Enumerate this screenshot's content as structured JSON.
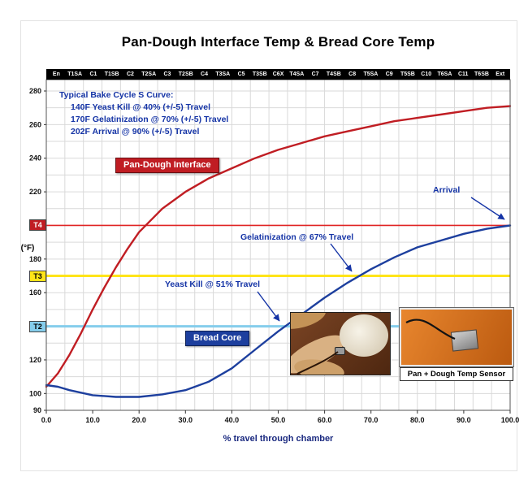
{
  "title": "Pan-Dough Interface Temp & Bread Core Temp",
  "notes": {
    "heading": "Typical Bake Cycle S Curve:",
    "line1": "140F Yeast Kill @ 40% (+/-5) Travel",
    "line2": "170F Gelatinization @ 70% (+/-5) Travel",
    "line3": "202F Arrival @ 90% (+/-5) Travel"
  },
  "legend": {
    "pan_dough_label": "Pan-Dough Interface",
    "bread_core_label": "Bread Core"
  },
  "callouts": {
    "arrival": "Arrival",
    "gelatinization": "Gelatinization @ 67% Travel",
    "yeast_kill": "Yeast Kill @ 51% Travel"
  },
  "photo_caption": "Pan + Dough Temp Sensor",
  "axis": {
    "y_unit": "(°F)",
    "x_title": "% travel through chamber"
  },
  "chart_data": {
    "type": "line",
    "title": "Pan-Dough Interface Temp & Bread Core Temp",
    "xlabel": "% travel through chamber",
    "ylabel": "(°F)",
    "xlim": [
      0,
      100
    ],
    "ylim": [
      90,
      280
    ],
    "x_tick_labels": [
      "0.0",
      "10.0",
      "20.0",
      "30.0",
      "40.0",
      "50.0",
      "60.0",
      "70.0",
      "80.0",
      "90.0",
      "100.0"
    ],
    "y_ticks": [
      90,
      100,
      120,
      140,
      160,
      180,
      200,
      220,
      240,
      260,
      280
    ],
    "grid": {
      "x_divisions": 25,
      "y_step": 10
    },
    "zones": [
      "En",
      "T1SA",
      "C1",
      "T1SB",
      "C2",
      "T2SA",
      "C3",
      "T2SB",
      "C4",
      "T3SA",
      "C5",
      "T3SB",
      "C6X",
      "T4SA",
      "C7",
      "T4SB",
      "C8",
      "T5SA",
      "C9",
      "T5SB",
      "C10",
      "T6SA",
      "C11",
      "T6SB",
      "Ext"
    ],
    "series": [
      {
        "name": "Pan-Dough Interface",
        "color": "#c01d23",
        "x": [
          0,
          2.5,
          5,
          7.5,
          10,
          12.5,
          15,
          17.5,
          20,
          25,
          30,
          35,
          40,
          45,
          50,
          55,
          60,
          65,
          70,
          75,
          80,
          85,
          90,
          95,
          100
        ],
        "y": [
          104,
          112,
          123,
          136,
          150,
          163,
          175,
          186,
          196,
          210,
          220,
          228,
          234,
          240,
          245,
          249,
          253,
          256,
          259,
          262,
          264,
          266,
          268,
          270,
          271
        ]
      },
      {
        "name": "Bread Core",
        "color": "#1d3f9e",
        "x": [
          0,
          2.5,
          5,
          10,
          15,
          20,
          25,
          30,
          35,
          40,
          45,
          50,
          55,
          60,
          65,
          70,
          75,
          80,
          85,
          90,
          95,
          100
        ],
        "y": [
          105,
          104,
          102,
          99,
          98,
          98,
          99.5,
          102,
          107,
          115,
          126,
          137,
          147,
          157,
          166,
          174,
          181,
          187,
          191,
          195,
          198,
          200
        ]
      }
    ],
    "reference_lines": [
      {
        "label": "T4",
        "temp": 200,
        "line_color": "#e02424",
        "line_width": 1.6,
        "box_bg": "#c01d23",
        "box_fg": "#ffffff"
      },
      {
        "label": "T3",
        "temp": 170,
        "line_color": "#ffe418",
        "line_width": 3,
        "box_bg": "#ffe418",
        "box_fg": "#000000"
      },
      {
        "label": "T2",
        "temp": 140,
        "line_color": "#85cdec",
        "line_width": 3,
        "box_bg": "#85cdec",
        "box_fg": "#000000"
      }
    ]
  }
}
